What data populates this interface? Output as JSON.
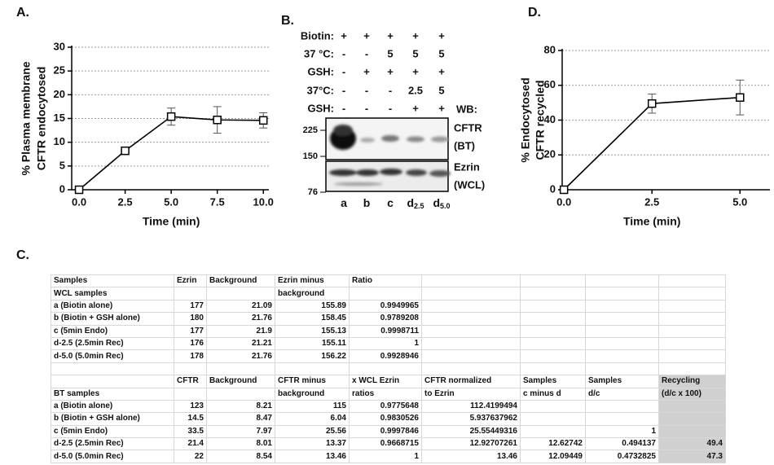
{
  "chart_data": [
    {
      "type": "line",
      "panel": "A.",
      "ylabel": [
        "% Plasma membrane",
        "CFTR endocytosed"
      ],
      "xlabel": "Time (min)",
      "x": [
        0,
        2.5,
        5,
        7.5,
        10
      ],
      "series": [
        {
          "color": "#000000",
          "values": [
            0,
            8.2,
            15.4,
            14.7,
            14.6
          ],
          "errors": [
            0,
            0.5,
            1.8,
            2.8,
            1.6
          ]
        }
      ],
      "xlim": [
        -0.4,
        10.3
      ],
      "ylim": [
        0,
        30
      ],
      "xticks": [
        {
          "value": 0,
          "label": "0.0"
        },
        2.5,
        {
          "value": 5,
          "label": "5.0"
        },
        7.5,
        {
          "value": 10,
          "label": "10.0"
        }
      ],
      "yticks": [
        0,
        5,
        10,
        15,
        20,
        25,
        30
      ],
      "grid": true
    },
    {
      "type": "line",
      "panel": "D.",
      "ylabel": [
        "% Endocytosed",
        "CFTR recycled"
      ],
      "xlabel": "Time (min)",
      "x": [
        0,
        2.5,
        5
      ],
      "series": [
        {
          "color": "#000000",
          "values": [
            0,
            49.5,
            53
          ],
          "errors": [
            0,
            5.5,
            10
          ]
        }
      ],
      "xlim": [
        -0.05,
        5.85
      ],
      "ylim": [
        0,
        80
      ],
      "xticks": [
        {
          "value": 0,
          "label": "0.0"
        },
        2.5,
        {
          "value": 5,
          "label": "5.0"
        }
      ],
      "yticks": [
        0,
        20,
        40,
        60,
        80
      ],
      "grid": true
    }
  ],
  "blot": {
    "panel": "B.",
    "rows": [
      {
        "label": "Biotin:",
        "cells": [
          "+",
          "+",
          "+",
          "+",
          "+"
        ]
      },
      {
        "label": "37 °C:",
        "cells": [
          "-",
          "-",
          "5",
          "5",
          "5"
        ]
      },
      {
        "label": "GSH:",
        "cells": [
          "-",
          "+",
          "+",
          "+",
          "+"
        ]
      },
      {
        "label": "37°C:",
        "cells": [
          "-",
          "-",
          "-",
          "2.5",
          "5"
        ]
      },
      {
        "label": "GSH:",
        "cells": [
          "-",
          "-",
          "-",
          "+",
          "+"
        ]
      }
    ],
    "wb": "WB:",
    "bands": [
      {
        "name": "CFTR",
        "source": "(BT)"
      },
      {
        "name": "Ezrin",
        "source": "(WCL)"
      }
    ],
    "markers": [
      225,
      150,
      76
    ],
    "lanes": [
      {
        "main": "a"
      },
      {
        "main": "b"
      },
      {
        "main": "c"
      },
      {
        "main": "d",
        "sub": "2.5"
      },
      {
        "main": "d",
        "sub": "5.0"
      }
    ]
  },
  "table": {
    "panel": "C.",
    "rows": [
      [
        "Samples",
        "Ezrin",
        "Background",
        "Ezrin minus",
        "Ratio",
        null,
        null,
        null,
        null
      ],
      [
        "WCL samples",
        null,
        null,
        "background",
        null,
        null,
        null,
        null,
        null
      ],
      [
        "a (Biotin alone)",
        177,
        21.09,
        155.89,
        0.9949965,
        null,
        null,
        null,
        null
      ],
      [
        "b (Biotin + GSH alone)",
        180,
        21.76,
        158.45,
        0.9789208,
        null,
        null,
        null,
        null
      ],
      [
        "c (5min Endo)",
        177,
        21.9,
        155.13,
        0.9998711,
        null,
        null,
        null,
        null
      ],
      [
        "d-2.5 (2.5min Rec)",
        176,
        21.21,
        155.11,
        1,
        null,
        null,
        null,
        null
      ],
      [
        "d-5.0 (5.0min Rec)",
        178,
        21.76,
        156.22,
        0.9928946,
        null,
        null,
        null,
        null
      ],
      [
        null,
        null,
        null,
        null,
        null,
        null,
        null,
        null,
        null
      ],
      [
        null,
        "CFTR",
        "Background",
        "CFTR minus",
        "x WCL Ezrin",
        "CFTR normalized",
        "Samples",
        "Samples",
        "Recycling"
      ],
      [
        "BT samples",
        null,
        null,
        "background",
        "ratios",
        "to Ezrin",
        "c minus d",
        "d/c",
        "(d/c x 100)"
      ],
      [
        "a (Biotin alone)",
        123,
        8.21,
        115,
        0.9775648,
        112.4199494,
        null,
        null,
        null
      ],
      [
        "b (Biotin + GSH alone)",
        14.5,
        8.47,
        6.04,
        0.9830526,
        5.937637962,
        null,
        null,
        null
      ],
      [
        "c (5min Endo)",
        33.5,
        7.97,
        25.56,
        0.9997846,
        25.55449316,
        null,
        1,
        null
      ],
      [
        "d-2.5 (2.5min Rec)",
        21.4,
        8.01,
        13.37,
        0.9668715,
        12.92707261,
        12.62742,
        0.494137,
        49.4
      ],
      [
        "d-5.0 (5.0min Rec)",
        22,
        8.54,
        13.46,
        1,
        13.46,
        12.09449,
        0.4732825,
        47.3
      ]
    ]
  }
}
